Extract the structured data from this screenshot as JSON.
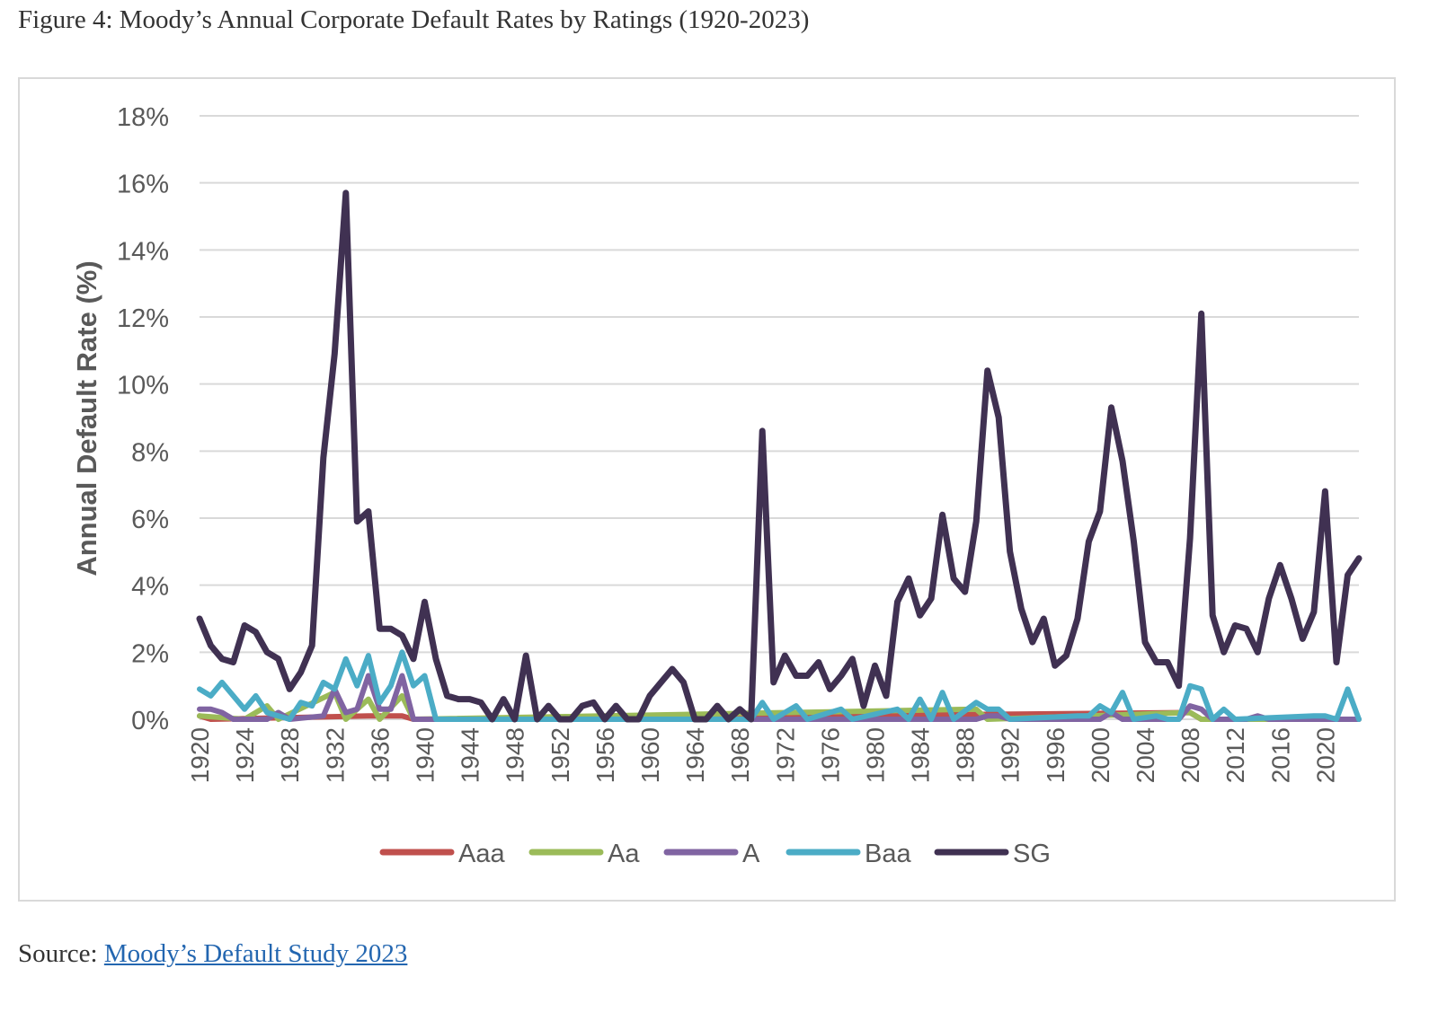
{
  "caption": "Figure 4: Moody’s Annual Corporate Default Rates by Ratings (1920-2023)",
  "source": {
    "label": "Source:",
    "link_text": "Moody’s Default Study 2023"
  },
  "chart_data": {
    "type": "line",
    "title": "",
    "xlabel": "",
    "ylabel": "Annual Default Rate (%)",
    "ylim": [
      0,
      18
    ],
    "yticks": [
      0,
      2,
      4,
      6,
      8,
      10,
      12,
      14,
      16,
      18
    ],
    "ytick_labels": [
      "0%",
      "2%",
      "4%",
      "6%",
      "8%",
      "10%",
      "12%",
      "14%",
      "16%",
      "18%"
    ],
    "x_start": 1920,
    "x_end": 2023,
    "xtick_labels": [
      "1920",
      "1924",
      "1928",
      "1932",
      "1936",
      "1940",
      "1944",
      "1948",
      "1952",
      "1956",
      "1960",
      "1964",
      "1968",
      "1972",
      "1976",
      "1980",
      "1984",
      "1988",
      "1992",
      "1996",
      "2000",
      "2004",
      "2008",
      "2012",
      "2016",
      "2020"
    ],
    "grid": true,
    "legend_position": "bottom",
    "series": [
      {
        "name": "Aaa",
        "color": "#c0504d",
        "points": [
          [
            1920,
            0.1
          ],
          [
            1921,
            0
          ],
          [
            1935,
            0.1
          ],
          [
            1938,
            0.1
          ],
          [
            1939,
            0
          ],
          [
            2008,
            0.2
          ],
          [
            2009,
            0
          ],
          [
            2023,
            0
          ]
        ]
      },
      {
        "name": "Aa",
        "color": "#9bbb59",
        "points": [
          [
            1920,
            0.1
          ],
          [
            1924,
            0
          ],
          [
            1926,
            0.4
          ],
          [
            1927,
            0
          ],
          [
            1932,
            0.8
          ],
          [
            1933,
            0
          ],
          [
            1935,
            0.6
          ],
          [
            1936,
            0
          ],
          [
            1938,
            0.7
          ],
          [
            1939,
            0
          ],
          [
            1989,
            0.3
          ],
          [
            1990,
            0
          ],
          [
            2008,
            0.2
          ],
          [
            2009,
            0
          ],
          [
            2023,
            0
          ]
        ]
      },
      {
        "name": "A",
        "color": "#8064a2",
        "points": [
          [
            1920,
            0.3
          ],
          [
            1921,
            0.3
          ],
          [
            1922,
            0.2
          ],
          [
            1923,
            0
          ],
          [
            1926,
            0
          ],
          [
            1927,
            0.2
          ],
          [
            1928,
            0
          ],
          [
            1931,
            0.1
          ],
          [
            1932,
            0.9
          ],
          [
            1933,
            0.2
          ],
          [
            1934,
            0.3
          ],
          [
            1935,
            1.3
          ],
          [
            1936,
            0.3
          ],
          [
            1937,
            0.3
          ],
          [
            1938,
            1.3
          ],
          [
            1939,
            0
          ],
          [
            1989,
            0
          ],
          [
            1990,
            0.1
          ],
          [
            1991,
            0.1
          ],
          [
            1992,
            0
          ],
          [
            2000,
            0
          ],
          [
            2001,
            0.2
          ],
          [
            2002,
            0
          ],
          [
            2007,
            0
          ],
          [
            2008,
            0.4
          ],
          [
            2009,
            0.3
          ],
          [
            2010,
            0
          ],
          [
            2013,
            0
          ],
          [
            2014,
            0.1
          ],
          [
            2015,
            0
          ],
          [
            2023,
            0
          ]
        ]
      },
      {
        "name": "Baa",
        "color": "#4bacc6",
        "points": [
          [
            1920,
            0.9
          ],
          [
            1921,
            0.7
          ],
          [
            1922,
            1.1
          ],
          [
            1923,
            0.7
          ],
          [
            1924,
            0.3
          ],
          [
            1925,
            0.7
          ],
          [
            1926,
            0.2
          ],
          [
            1927,
            0.1
          ],
          [
            1928,
            0
          ],
          [
            1929,
            0.5
          ],
          [
            1930,
            0.4
          ],
          [
            1931,
            1.1
          ],
          [
            1932,
            0.9
          ],
          [
            1933,
            1.8
          ],
          [
            1934,
            1.0
          ],
          [
            1935,
            1.9
          ],
          [
            1936,
            0.5
          ],
          [
            1937,
            1.0
          ],
          [
            1938,
            2.0
          ],
          [
            1939,
            1.0
          ],
          [
            1940,
            1.3
          ],
          [
            1941,
            0
          ],
          [
            1969,
            0
          ],
          [
            1970,
            0.5
          ],
          [
            1971,
            0
          ],
          [
            1973,
            0.4
          ],
          [
            1974,
            0
          ],
          [
            1977,
            0.3
          ],
          [
            1978,
            0
          ],
          [
            1982,
            0.3
          ],
          [
            1983,
            0
          ],
          [
            1984,
            0.6
          ],
          [
            1985,
            0
          ],
          [
            1986,
            0.8
          ],
          [
            1987,
            0
          ],
          [
            1989,
            0.5
          ],
          [
            1990,
            0.3
          ],
          [
            1991,
            0.3
          ],
          [
            1992,
            0
          ],
          [
            1998,
            0.1
          ],
          [
            1999,
            0.1
          ],
          [
            2000,
            0.4
          ],
          [
            2001,
            0.2
          ],
          [
            2002,
            0.8
          ],
          [
            2003,
            0
          ],
          [
            2005,
            0.1
          ],
          [
            2006,
            0
          ],
          [
            2007,
            0
          ],
          [
            2008,
            1.0
          ],
          [
            2009,
            0.9
          ],
          [
            2010,
            0
          ],
          [
            2011,
            0.3
          ],
          [
            2012,
            0
          ],
          [
            2019,
            0.1
          ],
          [
            2020,
            0.1
          ],
          [
            2021,
            0
          ],
          [
            2022,
            0.9
          ],
          [
            2023,
            0
          ]
        ]
      },
      {
        "name": "SG",
        "color": "#403152",
        "points": [
          [
            1920,
            3.0
          ],
          [
            1921,
            2.2
          ],
          [
            1922,
            1.8
          ],
          [
            1923,
            1.7
          ],
          [
            1924,
            2.8
          ],
          [
            1925,
            2.6
          ],
          [
            1926,
            2.0
          ],
          [
            1927,
            1.8
          ],
          [
            1928,
            0.9
          ],
          [
            1929,
            1.4
          ],
          [
            1930,
            2.2
          ],
          [
            1931,
            7.8
          ],
          [
            1932,
            10.9
          ],
          [
            1933,
            15.7
          ],
          [
            1934,
            5.9
          ],
          [
            1935,
            6.2
          ],
          [
            1936,
            2.7
          ],
          [
            1937,
            2.7
          ],
          [
            1938,
            2.5
          ],
          [
            1939,
            1.8
          ],
          [
            1940,
            3.5
          ],
          [
            1941,
            1.8
          ],
          [
            1942,
            0.7
          ],
          [
            1943,
            0.6
          ],
          [
            1944,
            0.6
          ],
          [
            1945,
            0.5
          ],
          [
            1946,
            0
          ],
          [
            1947,
            0.6
          ],
          [
            1948,
            0
          ],
          [
            1949,
            1.9
          ],
          [
            1950,
            0
          ],
          [
            1951,
            0.4
          ],
          [
            1952,
            0
          ],
          [
            1953,
            0
          ],
          [
            1954,
            0.4
          ],
          [
            1955,
            0.5
          ],
          [
            1956,
            0
          ],
          [
            1957,
            0.4
          ],
          [
            1958,
            0
          ],
          [
            1959,
            0
          ],
          [
            1960,
            0.7
          ],
          [
            1961,
            1.1
          ],
          [
            1962,
            1.5
          ],
          [
            1963,
            1.1
          ],
          [
            1964,
            0
          ],
          [
            1965,
            0
          ],
          [
            1966,
            0.4
          ],
          [
            1967,
            0
          ],
          [
            1968,
            0.3
          ],
          [
            1969,
            0
          ],
          [
            1970,
            8.6
          ],
          [
            1971,
            1.1
          ],
          [
            1972,
            1.9
          ],
          [
            1973,
            1.3
          ],
          [
            1974,
            1.3
          ],
          [
            1975,
            1.7
          ],
          [
            1976,
            0.9
          ],
          [
            1977,
            1.3
          ],
          [
            1978,
            1.8
          ],
          [
            1979,
            0.4
          ],
          [
            1980,
            1.6
          ],
          [
            1981,
            0.7
          ],
          [
            1982,
            3.5
          ],
          [
            1983,
            4.2
          ],
          [
            1984,
            3.1
          ],
          [
            1985,
            3.6
          ],
          [
            1986,
            6.1
          ],
          [
            1987,
            4.2
          ],
          [
            1988,
            3.8
          ],
          [
            1989,
            5.9
          ],
          [
            1990,
            10.4
          ],
          [
            1991,
            9.0
          ],
          [
            1992,
            5.0
          ],
          [
            1993,
            3.3
          ],
          [
            1994,
            2.3
          ],
          [
            1995,
            3.0
          ],
          [
            1996,
            1.6
          ],
          [
            1997,
            1.9
          ],
          [
            1998,
            3.0
          ],
          [
            1999,
            5.3
          ],
          [
            2000,
            6.2
          ],
          [
            2001,
            9.3
          ],
          [
            2002,
            7.7
          ],
          [
            2003,
            5.3
          ],
          [
            2004,
            2.3
          ],
          [
            2005,
            1.7
          ],
          [
            2006,
            1.7
          ],
          [
            2007,
            1.0
          ],
          [
            2008,
            5.4
          ],
          [
            2009,
            12.1
          ],
          [
            2010,
            3.1
          ],
          [
            2011,
            2.0
          ],
          [
            2012,
            2.8
          ],
          [
            2013,
            2.7
          ],
          [
            2014,
            2.0
          ],
          [
            2015,
            3.6
          ],
          [
            2016,
            4.6
          ],
          [
            2017,
            3.6
          ],
          [
            2018,
            2.4
          ],
          [
            2019,
            3.2
          ],
          [
            2020,
            6.8
          ],
          [
            2021,
            1.7
          ],
          [
            2022,
            4.3
          ],
          [
            2023,
            4.8
          ]
        ]
      }
    ]
  }
}
